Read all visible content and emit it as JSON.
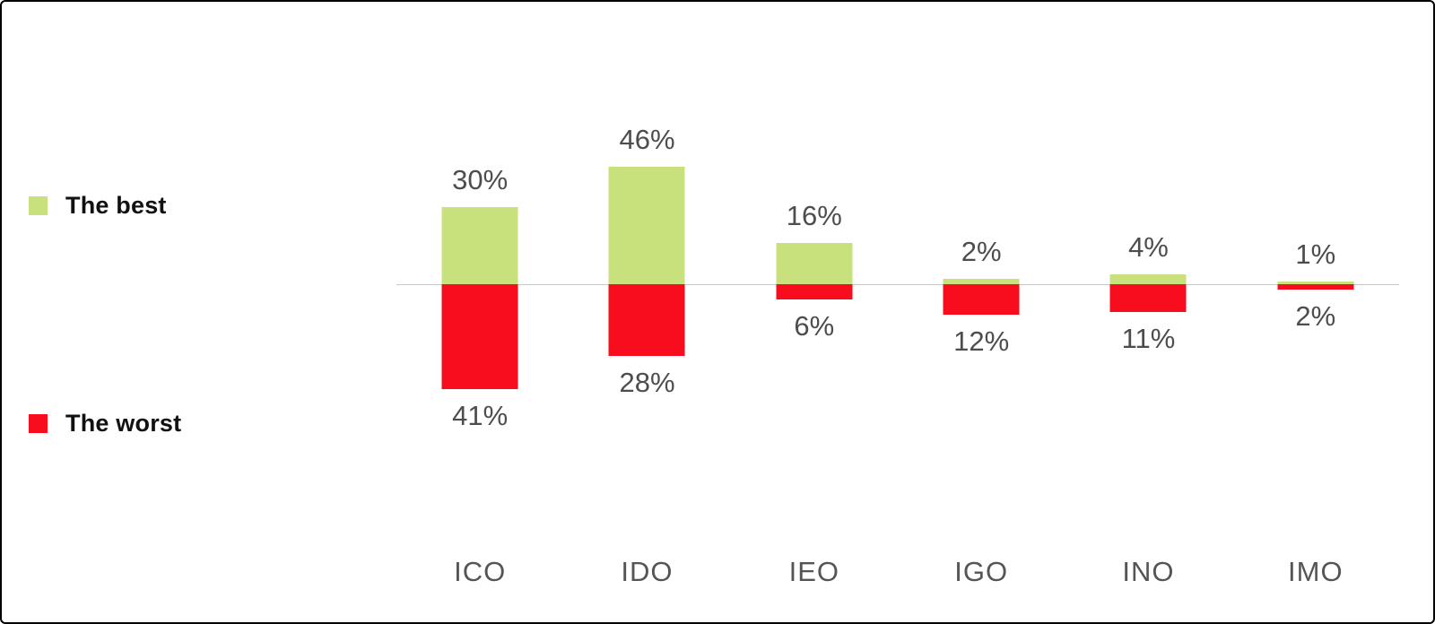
{
  "chart_data": {
    "type": "bar",
    "variant": "diverging",
    "title": "",
    "xlabel": "",
    "ylabel": "",
    "categories": [
      "ICO",
      "IDO",
      "IEO",
      "IGO",
      "INO",
      "IMO"
    ],
    "series": [
      {
        "name": "The best",
        "direction": "up",
        "values": [
          30,
          46,
          16,
          2,
          4,
          1
        ]
      },
      {
        "name": "The worst",
        "direction": "down",
        "values": [
          41,
          28,
          6,
          12,
          11,
          2
        ]
      }
    ],
    "value_labels": {
      "best": [
        "30%",
        "46%",
        "16%",
        "2%",
        "4%",
        "1%"
      ],
      "worst": [
        "41%",
        "28%",
        "6%",
        "12%",
        "11%",
        "2%"
      ]
    },
    "legend_position": "left",
    "grid": false
  },
  "legend": {
    "best_label": "The best",
    "worst_label": "The worst"
  },
  "colors": {
    "best": "#c9e17c",
    "worst": "#f70d1e",
    "baseline": "#c9c9c9",
    "value_text": "#4d4d4d",
    "category_text": "#555555"
  }
}
